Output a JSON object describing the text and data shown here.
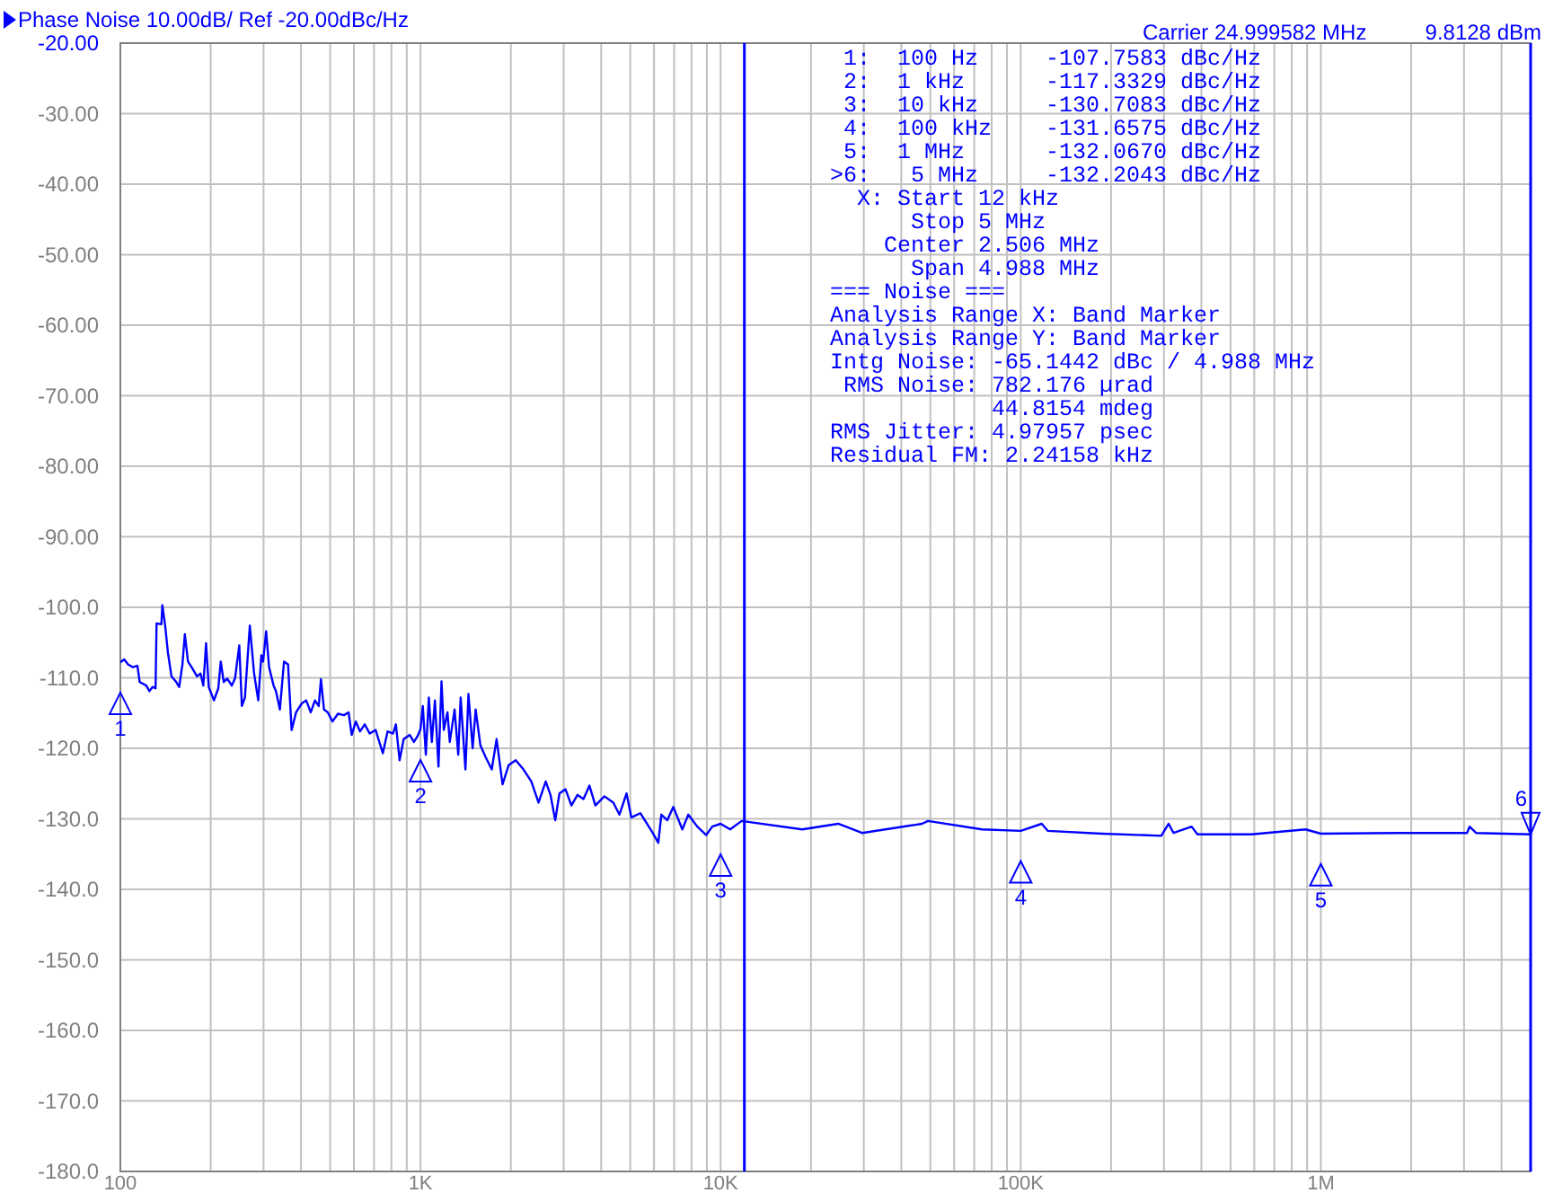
{
  "chart_data": {
    "type": "line",
    "title": "Phase Noise 10.00dB/ Ref -20.00dBc/Hz",
    "log": "x",
    "grid": true,
    "marker": "none",
    "line_style": "solid",
    "xlim": [
      100,
      5000000
    ],
    "xticks": [
      {
        "value": 100,
        "label": "100"
      },
      {
        "value": 200,
        "label": null
      },
      {
        "value": 300,
        "label": null
      },
      {
        "value": 400,
        "label": null
      },
      {
        "value": 500,
        "label": null
      },
      {
        "value": 600,
        "label": null
      },
      {
        "value": 700,
        "label": null
      },
      {
        "value": 800,
        "label": null
      },
      {
        "value": 900,
        "label": null
      },
      {
        "value": 1000,
        "label": "1K"
      },
      {
        "value": 2000,
        "label": null
      },
      {
        "value": 3000,
        "label": null
      },
      {
        "value": 4000,
        "label": null
      },
      {
        "value": 5000,
        "label": null
      },
      {
        "value": 6000,
        "label": null
      },
      {
        "value": 7000,
        "label": null
      },
      {
        "value": 8000,
        "label": null
      },
      {
        "value": 9000,
        "label": null
      },
      {
        "value": 10000,
        "label": "10K"
      },
      {
        "value": 20000,
        "label": null
      },
      {
        "value": 30000,
        "label": null
      },
      {
        "value": 40000,
        "label": null
      },
      {
        "value": 50000,
        "label": null
      },
      {
        "value": 60000,
        "label": null
      },
      {
        "value": 70000,
        "label": null
      },
      {
        "value": 80000,
        "label": null
      },
      {
        "value": 90000,
        "label": null
      },
      {
        "value": 100000,
        "label": "100K"
      },
      {
        "value": 200000,
        "label": null
      },
      {
        "value": 300000,
        "label": null
      },
      {
        "value": 400000,
        "label": null
      },
      {
        "value": 500000,
        "label": null
      },
      {
        "value": 600000,
        "label": null
      },
      {
        "value": 700000,
        "label": null
      },
      {
        "value": 800000,
        "label": null
      },
      {
        "value": 900000,
        "label": null
      },
      {
        "value": 1000000,
        "label": "1M"
      },
      {
        "value": 2000000,
        "label": null
      },
      {
        "value": 3000000,
        "label": null
      },
      {
        "value": 4000000,
        "label": null
      }
    ],
    "ylim": [
      -180,
      -20
    ],
    "yticks": [
      {
        "value": -20,
        "label": "-20.00"
      },
      {
        "value": -30,
        "label": "-30.00"
      },
      {
        "value": -40,
        "label": "-40.00"
      },
      {
        "value": -50,
        "label": "-50.00"
      },
      {
        "value": -60,
        "label": "-60.00"
      },
      {
        "value": -70,
        "label": "-70.00"
      },
      {
        "value": -80,
        "label": "-80.00"
      },
      {
        "value": -90,
        "label": "-90.00"
      },
      {
        "value": -100,
        "label": "-100.0"
      },
      {
        "value": -110,
        "label": "-110.0"
      },
      {
        "value": -120,
        "label": "-120.0"
      },
      {
        "value": -130,
        "label": "-130.0"
      },
      {
        "value": -140,
        "label": "-140.0"
      },
      {
        "value": -150,
        "label": "-150.0"
      },
      {
        "value": -160,
        "label": "-160.0"
      },
      {
        "value": -170,
        "label": "-170.0"
      },
      {
        "value": -180,
        "label": "-180.0"
      }
    ],
    "series": [
      {
        "color": "#0000ff",
        "x": [
          100,
          103,
          106,
          110,
          114,
          116,
          122,
          125,
          128,
          131,
          132,
          137,
          138,
          141,
          144,
          148,
          153,
          157,
          161,
          164,
          168,
          174,
          180,
          185,
          189,
          193,
          197,
          205,
          212,
          216,
          221,
          227,
          235,
          241,
          249,
          254,
          260,
          270,
          279,
          288,
          295,
          299,
          306,
          313,
          324,
          330,
          340,
          351,
          362,
          372,
          385,
          403,
          416,
          431,
          445,
          458,
          466,
          477,
          491,
          509,
          531,
          556,
          576,
          590,
          609,
          629,
          652,
          677,
          709,
          749,
          777,
          810,
          828,
          852,
          879,
          921,
          951,
          977,
          1000,
          1018,
          1042,
          1066,
          1091,
          1117,
          1148,
          1175,
          1196,
          1230,
          1252,
          1299,
          1336,
          1361,
          1412,
          1445,
          1492,
          1527,
          1584,
          1651,
          1728,
          1793,
          1877,
          1966,
          2077,
          2204,
          2340,
          2474,
          2614,
          2711,
          2812,
          2904,
          3041,
          3184,
          3334,
          3491,
          3656,
          3826,
          4101,
          4392,
          4600,
          4860,
          5043,
          5402,
          5922,
          6200,
          6346,
          6644,
          6955,
          7455,
          7804,
          8363,
          8956,
          9378,
          10000,
          10760,
          11750,
          18700,
          24650,
          29600,
          46900,
          49100,
          74300,
          100000,
          117500,
          123000,
          186000,
          294000,
          311000,
          323000,
          371000,
          388000,
          587000,
          889000,
          1000000,
          1850000,
          3070000,
          3130000,
          3290000,
          5000000
        ],
        "values": [
          -107.8,
          -107.4,
          -108.1,
          -108.5,
          -108.3,
          -110.6,
          -111.1,
          -111.9,
          -111.3,
          -111.5,
          -102.3,
          -102.4,
          -99.7,
          -102.6,
          -106.4,
          -109.8,
          -110.5,
          -111.3,
          -108.1,
          -103.8,
          -107.7,
          -108.7,
          -109.8,
          -109.4,
          -111.1,
          -105.1,
          -111.3,
          -113.2,
          -111.5,
          -107.7,
          -110.6,
          -110.1,
          -111.1,
          -110.1,
          -105.4,
          -114.0,
          -112.8,
          -102.6,
          -109.4,
          -113.2,
          -106.8,
          -107.7,
          -103.4,
          -108.5,
          -111.1,
          -111.9,
          -114.5,
          -107.7,
          -108.1,
          -117.4,
          -114.9,
          -113.6,
          -113.2,
          -114.9,
          -113.2,
          -114.0,
          -110.2,
          -114.5,
          -114.9,
          -116.2,
          -115.1,
          -115.3,
          -114.9,
          -118.1,
          -116.2,
          -117.6,
          -116.6,
          -117.9,
          -117.4,
          -120.7,
          -117.6,
          -117.9,
          -116.6,
          -121.7,
          -118.7,
          -118.1,
          -119.1,
          -118.3,
          -117.3,
          -114.0,
          -120.9,
          -112.8,
          -119.1,
          -113.2,
          -122.6,
          -110.5,
          -117.4,
          -114.9,
          -119.1,
          -114.5,
          -120.9,
          -112.8,
          -123.0,
          -112.3,
          -120.0,
          -114.5,
          -119.6,
          -121.3,
          -123.0,
          -118.7,
          -125.1,
          -122.4,
          -121.7,
          -123.0,
          -124.7,
          -127.7,
          -124.7,
          -126.6,
          -130.2,
          -126.4,
          -125.8,
          -128.1,
          -126.6,
          -127.2,
          -125.3,
          -128.1,
          -126.8,
          -127.7,
          -129.4,
          -126.4,
          -129.8,
          -129.2,
          -131.9,
          -133.4,
          -129.4,
          -130.2,
          -128.3,
          -131.5,
          -129.4,
          -131.1,
          -132.3,
          -131.1,
          -130.7,
          -131.5,
          -130.3,
          -131.5,
          -130.7,
          -132.0,
          -130.7,
          -130.3,
          -131.5,
          -131.7,
          -130.7,
          -131.7,
          -132.1,
          -132.4,
          -130.7,
          -132.0,
          -131.1,
          -132.2,
          -132.2,
          -131.5,
          -132.1,
          -132.0,
          -132.0,
          -131.1,
          -132.0,
          -132.2
        ]
      }
    ],
    "ref_lines": [
      {
        "axis": "x",
        "value": 12000,
        "color": "#0000ff"
      },
      {
        "axis": "x",
        "value": 5000000,
        "color": "#0000ff"
      }
    ],
    "annotations": [
      {
        "text": "1",
        "x": 100,
        "y": -107.7583
      },
      {
        "text": "2",
        "x": 1000,
        "y": -117.3329
      },
      {
        "text": "3",
        "x": 10000,
        "y": -130.7083
      },
      {
        "text": "4",
        "x": 100000,
        "y": -131.6575
      },
      {
        "text": "5",
        "x": 1000000,
        "y": -132.067
      },
      {
        "text": "6",
        "x": 5000000,
        "y": -132.2043
      },
      "Carrier 24.999582 MHz",
      "9.8128 dBm",
      " 1:  100 Hz     -107.7583 dBc/Hz",
      " 2:  1 kHz      -117.3329 dBc/Hz",
      " 3:  10 kHz     -130.7083 dBc/Hz",
      " 4:  100 kHz    -131.6575 dBc/Hz",
      " 5:  1 MHz      -132.0670 dBc/Hz",
      ">6:   5 MHz     -132.2043 dBc/Hz",
      "  X: Start 12 kHz",
      "      Stop 5 MHz",
      "    Center 2.506 MHz",
      "      Span 4.988 MHz",
      "=== Noise ===",
      "Analysis Range X: Band Marker",
      "Analysis Range Y: Band Marker",
      "Intg Noise: -65.1442 dBc / 4.988 MHz",
      " RMS Noise: 782.176 µrad",
      "            44.8154 mdeg",
      "RMS Jitter: 4.97957 psec",
      "Residual FM: 2.24158 kHz"
    ]
  }
}
